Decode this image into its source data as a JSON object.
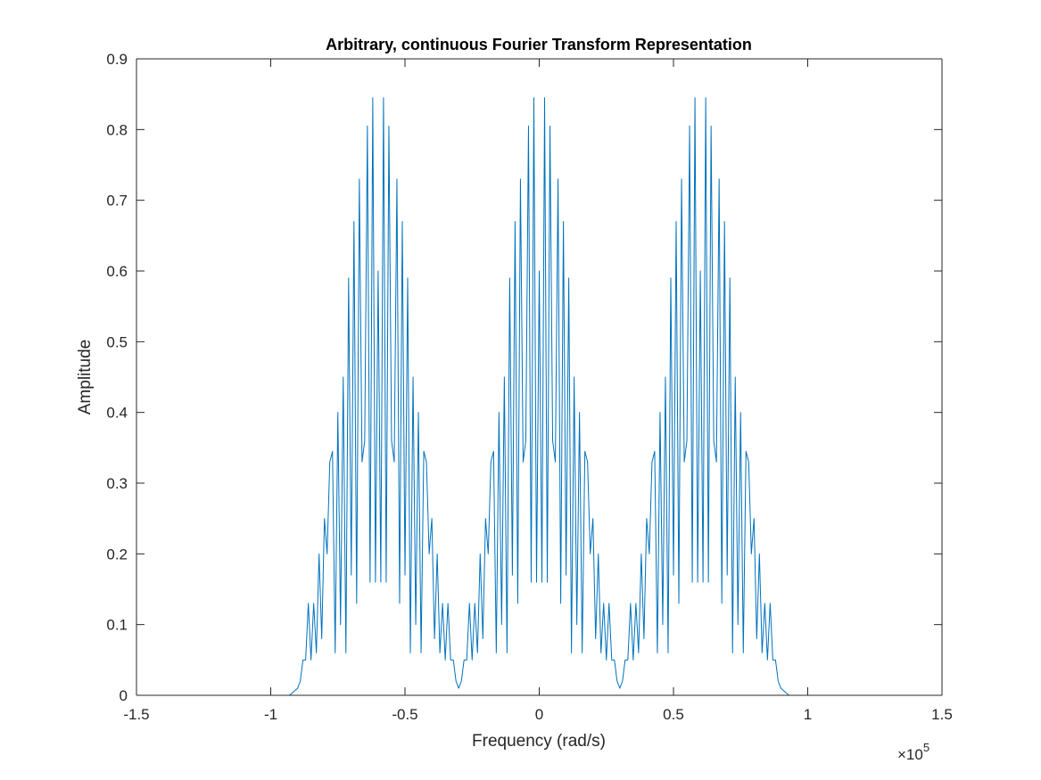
{
  "chart_data": {
    "type": "line",
    "title": "Arbitrary, continuous Fourier Transform Representation",
    "xlabel": "Frequency (rad/s)",
    "ylabel": "Amplitude",
    "x_multiplier": {
      "base": "×10",
      "exponent": "5"
    },
    "xlim": [
      -1.5,
      1.5
    ],
    "ylim": [
      0,
      0.9
    ],
    "xticks": [
      -1.5,
      -1,
      -0.5,
      0,
      0.5,
      1,
      1.5
    ],
    "yticks": [
      0,
      0.1,
      0.2,
      0.3,
      0.4,
      0.5,
      0.6,
      0.7,
      0.8,
      0.9
    ],
    "box": true,
    "x": [
      -1.1,
      -0.93,
      -0.9,
      -0.89,
      -0.88,
      -0.87,
      -0.86,
      -0.85,
      -0.84,
      -0.83,
      -0.82,
      -0.81,
      -0.8,
      -0.79,
      -0.78,
      -0.77,
      -0.76,
      -0.75,
      -0.74,
      -0.73,
      -0.72,
      -0.71,
      -0.7,
      -0.69,
      -0.68,
      -0.67,
      -0.66,
      -0.65,
      -0.64,
      -0.63,
      -0.62,
      -0.61,
      -0.6,
      -0.59,
      -0.58,
      -0.57,
      -0.56,
      -0.55,
      -0.54,
      -0.53,
      -0.52,
      -0.51,
      -0.5,
      -0.49,
      -0.48,
      -0.47,
      -0.46,
      -0.45,
      -0.44,
      -0.43,
      -0.42,
      -0.41,
      -0.4,
      -0.39,
      -0.38,
      -0.37,
      -0.36,
      -0.35,
      -0.34,
      -0.33,
      -0.32,
      -0.31,
      -0.3,
      -0.29,
      -0.28,
      -0.27,
      -0.26,
      -0.25,
      -0.24,
      -0.23,
      -0.22,
      -0.21,
      -0.2,
      -0.19,
      -0.18,
      -0.17,
      -0.16,
      -0.15,
      -0.14,
      -0.13,
      -0.12,
      -0.11,
      -0.1,
      -0.09,
      -0.08,
      -0.07,
      -0.06,
      -0.05,
      -0.04,
      -0.03,
      -0.02,
      -0.01,
      0,
      0.01,
      0.02,
      0.03,
      0.04,
      0.05,
      0.06,
      0.07,
      0.08,
      0.09,
      0.1,
      0.11,
      0.12,
      0.13,
      0.14,
      0.15,
      0.16,
      0.17,
      0.18,
      0.19,
      0.2,
      0.21,
      0.22,
      0.23,
      0.24,
      0.25,
      0.26,
      0.27,
      0.28,
      0.29,
      0.3,
      0.31,
      0.32,
      0.33,
      0.34,
      0.35,
      0.36,
      0.37,
      0.38,
      0.39,
      0.4,
      0.41,
      0.42,
      0.43,
      0.44,
      0.45,
      0.46,
      0.47,
      0.48,
      0.49,
      0.5,
      0.51,
      0.52,
      0.53,
      0.54,
      0.55,
      0.56,
      0.57,
      0.58,
      0.59,
      0.6,
      0.61,
      0.62,
      0.63,
      0.64,
      0.65,
      0.66,
      0.67,
      0.68,
      0.69,
      0.7,
      0.71,
      0.72,
      0.73,
      0.74,
      0.75,
      0.76,
      0.77,
      0.78,
      0.79,
      0.8,
      0.81,
      0.82,
      0.83,
      0.84,
      0.85,
      0.86,
      0.87,
      0.88,
      0.89,
      0.9,
      0.93,
      1.1
    ],
    "series": [
      {
        "color": "#0072bd",
        "values": [
          0,
          0,
          0.01,
          0.02,
          0.05,
          0.05,
          0.13,
          0.05,
          0.13,
          0.06,
          0.2,
          0.08,
          0.25,
          0.2,
          0.33,
          0.345,
          0.06,
          0.4,
          0.1,
          0.45,
          0.06,
          0.59,
          0.17,
          0.67,
          0.13,
          0.73,
          0.33,
          0.36,
          0.805,
          0.16,
          0.845,
          0.16,
          0.6,
          0.16,
          0.845,
          0.16,
          0.805,
          0.36,
          0.33,
          0.73,
          0.13,
          0.67,
          0.17,
          0.59,
          0.06,
          0.45,
          0.1,
          0.4,
          0.06,
          0.345,
          0.33,
          0.2,
          0.25,
          0.08,
          0.2,
          0.06,
          0.13,
          0.05,
          0.13,
          0.05,
          0.05,
          0.02,
          0.01,
          0.02,
          0.05,
          0.05,
          0.13,
          0.05,
          0.13,
          0.06,
          0.2,
          0.08,
          0.25,
          0.2,
          0.33,
          0.345,
          0.06,
          0.4,
          0.1,
          0.45,
          0.06,
          0.59,
          0.17,
          0.67,
          0.13,
          0.73,
          0.33,
          0.36,
          0.805,
          0.16,
          0.845,
          0.16,
          0.6,
          0.16,
          0.845,
          0.16,
          0.805,
          0.36,
          0.33,
          0.73,
          0.13,
          0.67,
          0.17,
          0.59,
          0.06,
          0.45,
          0.1,
          0.4,
          0.06,
          0.345,
          0.33,
          0.2,
          0.25,
          0.08,
          0.2,
          0.06,
          0.13,
          0.05,
          0.13,
          0.05,
          0.05,
          0.02,
          0.01,
          0.02,
          0.05,
          0.05,
          0.13,
          0.05,
          0.13,
          0.06,
          0.2,
          0.08,
          0.25,
          0.2,
          0.33,
          0.345,
          0.06,
          0.4,
          0.1,
          0.45,
          0.06,
          0.59,
          0.17,
          0.67,
          0.13,
          0.73,
          0.33,
          0.36,
          0.805,
          0.16,
          0.845,
          0.16,
          0.6,
          0.16,
          0.845,
          0.16,
          0.805,
          0.36,
          0.33,
          0.73,
          0.13,
          0.67,
          0.17,
          0.59,
          0.06,
          0.45,
          0.1,
          0.4,
          0.06,
          0.345,
          0.33,
          0.2,
          0.25,
          0.08,
          0.2,
          0.06,
          0.13,
          0.05,
          0.13,
          0.05,
          0.05,
          0.02,
          0.01,
          0,
          0
        ]
      }
    ]
  }
}
